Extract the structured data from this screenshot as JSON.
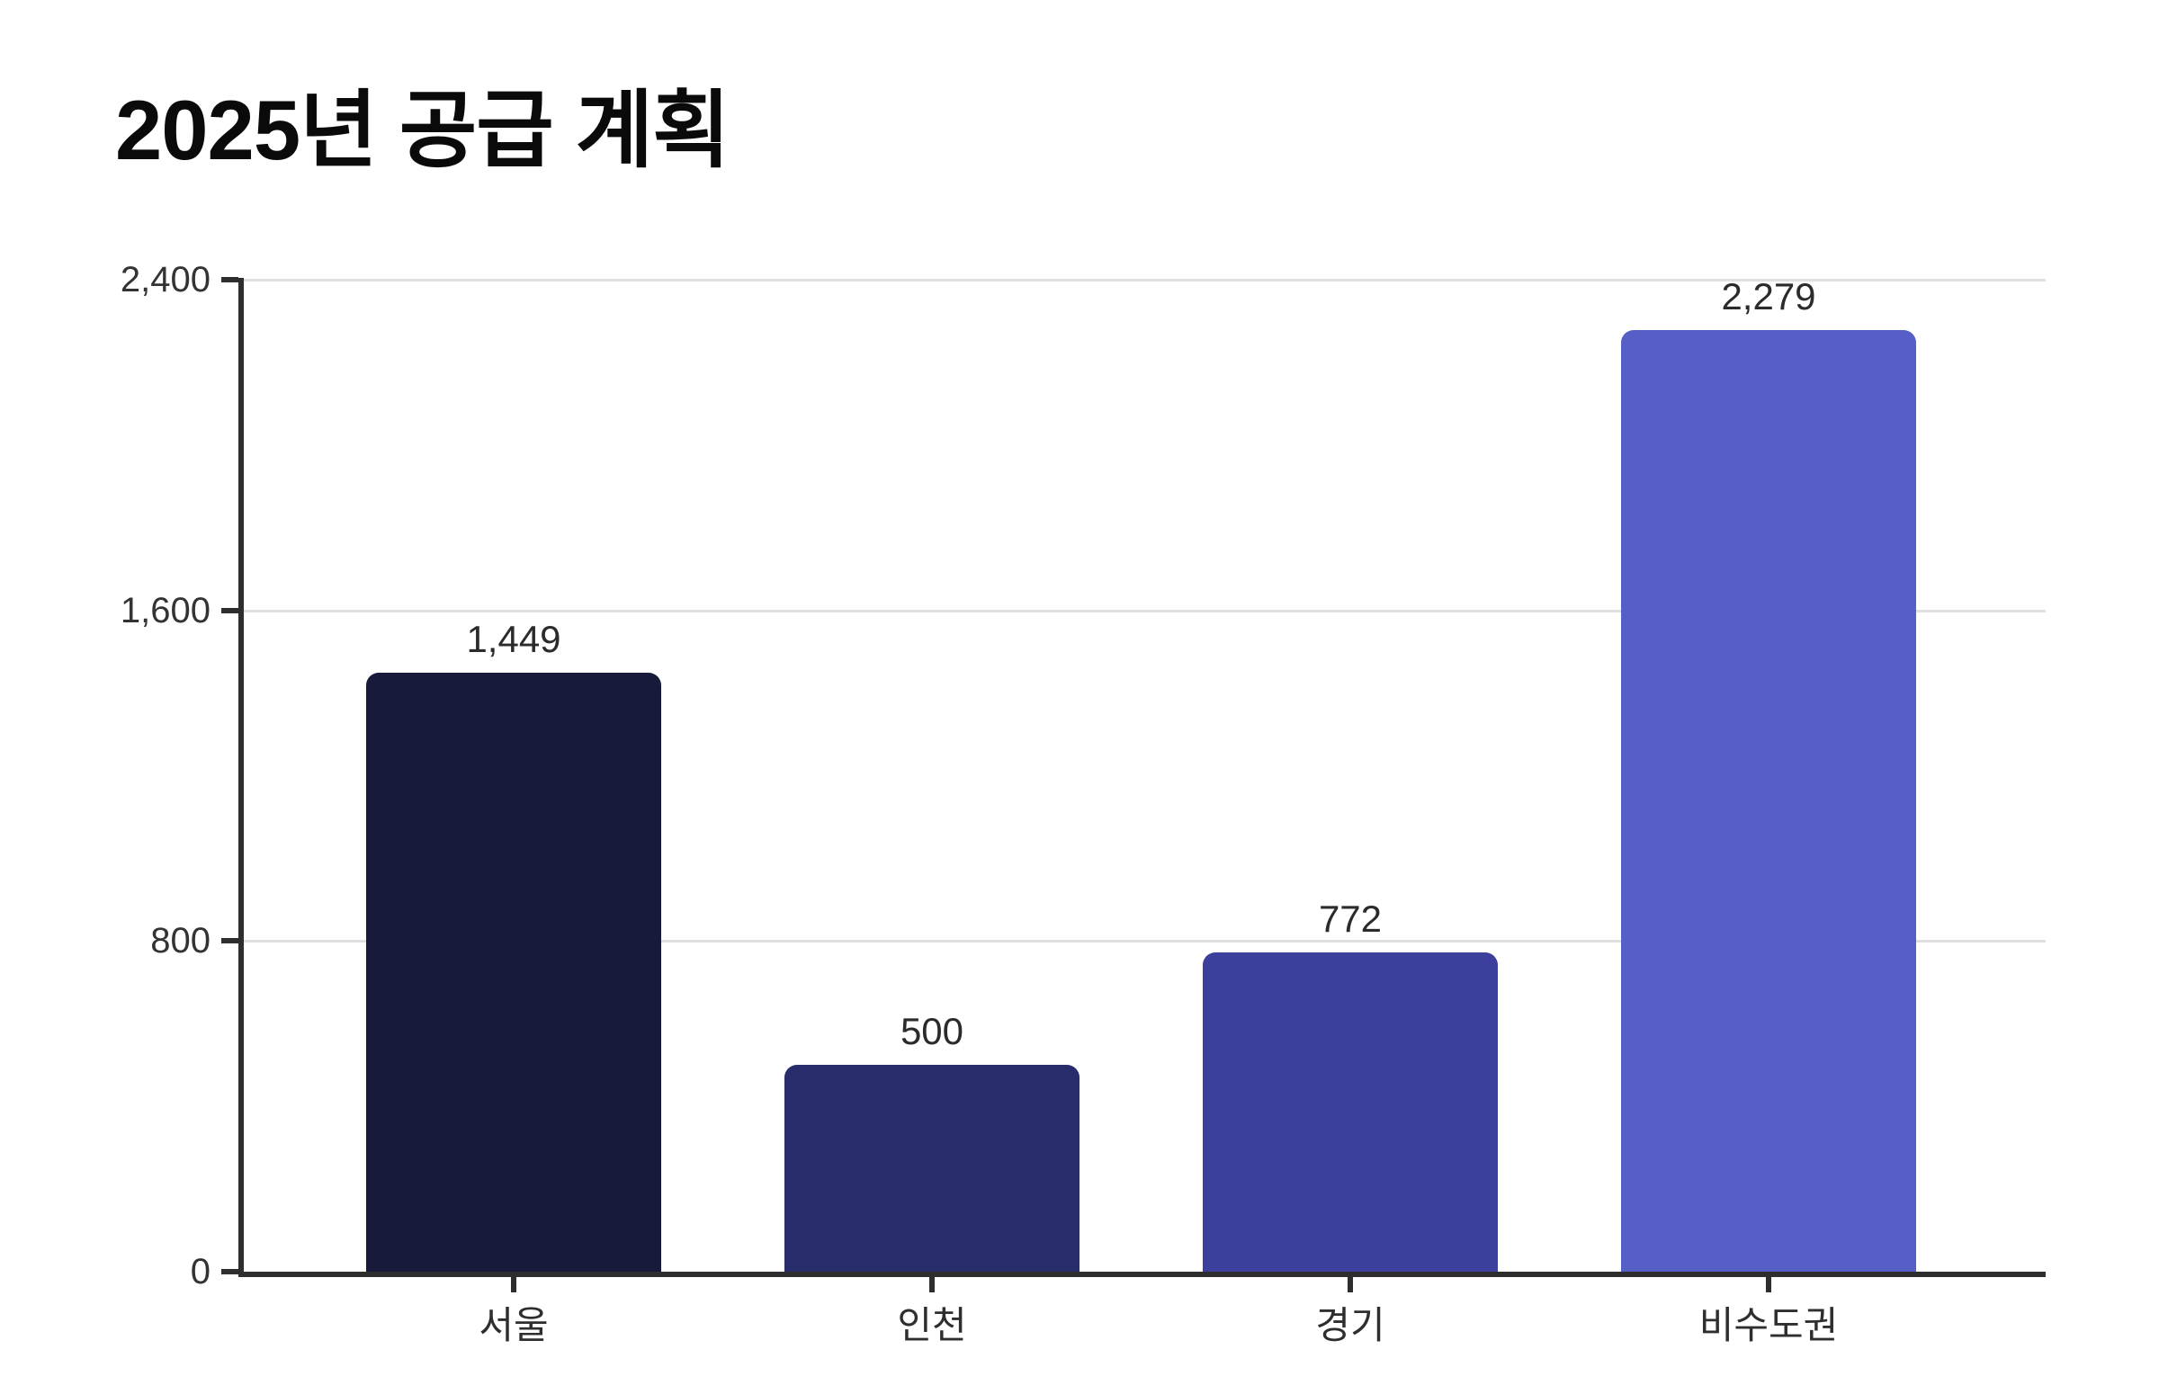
{
  "page": {
    "title": "2025년 공급 계획"
  },
  "chart_data": {
    "type": "bar",
    "title": "2025년 공급 계획",
    "categories": [
      "서울",
      "인천",
      "경기",
      "비수도권"
    ],
    "category_ids": [
      "seoul",
      "incheon",
      "gyeonggi",
      "non-capital-region"
    ],
    "values": [
      1449,
      500,
      772,
      2279
    ],
    "value_labels": [
      "1,449",
      "500",
      "772",
      "2,279"
    ],
    "bar_colors": [
      "#171b39",
      "#282c6b",
      "#3c3f9c",
      "#565fc6"
    ],
    "xlabel": "",
    "ylabel": "",
    "ylim": [
      0,
      2400
    ],
    "yticks": [
      0,
      800,
      1600,
      2400
    ],
    "ytick_labels": [
      "0",
      "800",
      "1,600",
      "2,400"
    ],
    "grid": "horizontal-only",
    "legend": "none"
  },
  "colors": {
    "background": "#ffffff",
    "axis": "#2e2e2e",
    "gridline": "#e0e0e0",
    "tick_label": "#333333",
    "value_label": "#2b2b2b",
    "category_label": "#2e2e2e",
    "title": "#0a0a0a"
  }
}
